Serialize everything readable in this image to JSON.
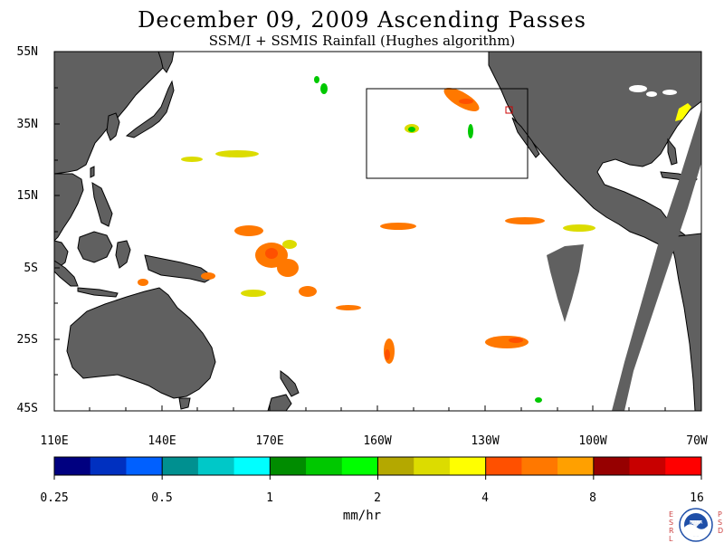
{
  "header": {
    "title": "December 09, 2009  Ascending Passes",
    "subtitle": "SSM/I + SSMIS Rainfall (Hughes algorithm)"
  },
  "axes": {
    "lat_labels": [
      "55N",
      "35N",
      "15N",
      "5S",
      "25S",
      "45S"
    ],
    "lon_labels": [
      "110E",
      "140E",
      "170E",
      "160W",
      "130W",
      "100W",
      "70W"
    ]
  },
  "colorbar": {
    "tick_labels": [
      "0.25",
      "0.5",
      "1",
      "2",
      "4",
      "8",
      "16"
    ],
    "units": "mm/hr",
    "colors": [
      "#000080",
      "#0030c0",
      "#0060ff",
      "#009090",
      "#00c8c8",
      "#00ffff",
      "#008c00",
      "#00c800",
      "#00ff00",
      "#b4a800",
      "#dcdc00",
      "#ffff00",
      "#ff5000",
      "#ff7800",
      "#ffa000",
      "#960000",
      "#c80000",
      "#ff0000"
    ]
  },
  "logo": {
    "left_letters": [
      "E",
      "S",
      "R",
      "L"
    ],
    "right_letters": [
      "P",
      "S",
      "D"
    ],
    "name": "NOAA"
  },
  "palette": {
    "land": "#606060",
    "ocean": "#ffffff",
    "box": "#000000"
  }
}
